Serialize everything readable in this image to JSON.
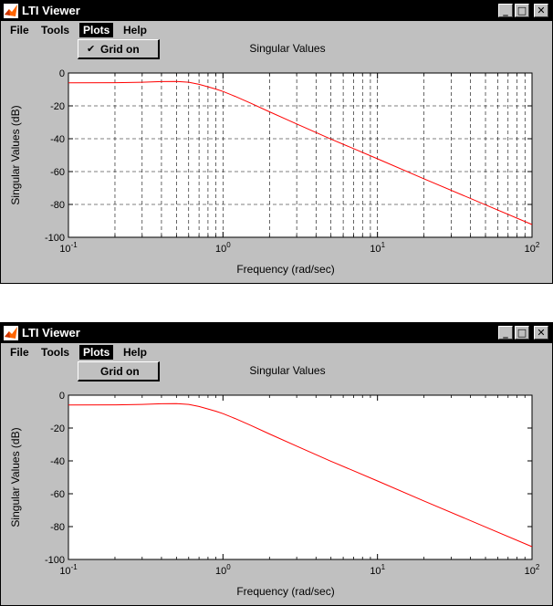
{
  "windows": [
    {
      "title": "LTI Viewer",
      "menu": [
        "File",
        "Tools",
        "Plots",
        "Help"
      ],
      "active_menu": "Plots",
      "dropdown": {
        "item_label": "Grid on",
        "checked": true,
        "check_glyph": "✔"
      },
      "window_buttons": {
        "minimize": "_",
        "maximize": "□",
        "close": "✕"
      }
    },
    {
      "title": "LTI Viewer",
      "menu": [
        "File",
        "Tools",
        "Plots",
        "Help"
      ],
      "active_menu": "Plots",
      "dropdown": {
        "item_label": "Grid on",
        "checked": false,
        "check_glyph": ""
      },
      "window_buttons": {
        "minimize": "_",
        "maximize": "□",
        "close": "✕"
      }
    }
  ],
  "chart_data": [
    {
      "type": "line",
      "title": "Singular Values",
      "xlabel": "Frequency (rad/sec)",
      "ylabel": "Singular Values (dB)",
      "x_scale": "log",
      "xlim": [
        0.1,
        100
      ],
      "ylim": [
        -100,
        0
      ],
      "yticks": [
        "0",
        "-20",
        "-40",
        "-60",
        "-80",
        "-100"
      ],
      "xticks": [
        {
          "base": "10",
          "exp": "-1"
        },
        {
          "base": "10",
          "exp": "0"
        },
        {
          "base": "10",
          "exp": "1"
        },
        {
          "base": "10",
          "exp": "2"
        }
      ],
      "grid": true,
      "line_color": "#ff0000",
      "series": [
        {
          "x": [
            0.1,
            0.2,
            0.3,
            0.4,
            0.5,
            0.6,
            0.7,
            0.8,
            0.9,
            1,
            1.2,
            1.5,
            2,
            3,
            5,
            7,
            10,
            20,
            50,
            100
          ],
          "y": [
            -6,
            -5.9,
            -5.6,
            -5.2,
            -5.1,
            -5.6,
            -6.9,
            -8.4,
            -9.8,
            -11.2,
            -14.2,
            -18.2,
            -23.6,
            -31,
            -40.2,
            -46,
            -52.2,
            -64.4,
            -80.2,
            -92.2
          ]
        }
      ]
    },
    {
      "type": "line",
      "title": "Singular Values",
      "xlabel": "Frequency (rad/sec)",
      "ylabel": "Singular Values (dB)",
      "x_scale": "log",
      "xlim": [
        0.1,
        100
      ],
      "ylim": [
        -100,
        0
      ],
      "yticks": [
        "0",
        "-20",
        "-40",
        "-60",
        "-80",
        "-100"
      ],
      "xticks": [
        {
          "base": "10",
          "exp": "-1"
        },
        {
          "base": "10",
          "exp": "0"
        },
        {
          "base": "10",
          "exp": "1"
        },
        {
          "base": "10",
          "exp": "2"
        }
      ],
      "grid": false,
      "line_color": "#ff0000",
      "series": [
        {
          "x": [
            0.1,
            0.2,
            0.3,
            0.4,
            0.5,
            0.6,
            0.7,
            0.8,
            0.9,
            1,
            1.2,
            1.5,
            2,
            3,
            5,
            7,
            10,
            20,
            50,
            100
          ],
          "y": [
            -6,
            -5.9,
            -5.6,
            -5.2,
            -5.1,
            -5.6,
            -6.9,
            -8.4,
            -9.8,
            -11.2,
            -14.2,
            -18.2,
            -23.6,
            -31,
            -40.2,
            -46,
            -52.2,
            -64.4,
            -80.2,
            -92.2
          ]
        }
      ]
    }
  ]
}
